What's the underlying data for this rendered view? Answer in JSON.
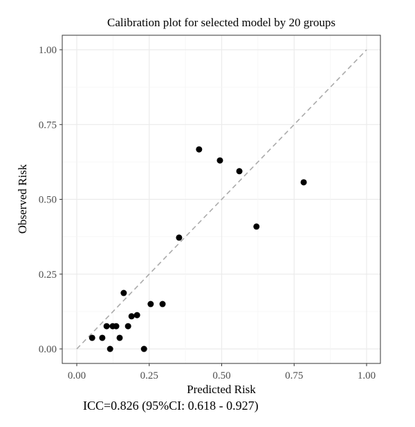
{
  "chart_data": {
    "type": "scatter",
    "title": "Calibration plot for selected model by 20 groups",
    "xlabel": "Predicted Risk",
    "ylabel": "Observed Risk",
    "xlim": [
      0,
      1
    ],
    "ylim": [
      0,
      1
    ],
    "xticks": [
      "0.00",
      "0.25",
      "0.50",
      "0.75",
      "1.00"
    ],
    "yticks": [
      "0.00",
      "0.25",
      "0.50",
      "0.75",
      "1.00"
    ],
    "grid": true,
    "reference_line": "y = x (dashed)",
    "point_color": "#000000",
    "line_color": "#aaaaaa",
    "points": [
      {
        "x": 0.053,
        "y": 0.037
      },
      {
        "x": 0.088,
        "y": 0.037
      },
      {
        "x": 0.103,
        "y": 0.076
      },
      {
        "x": 0.124,
        "y": 0.076
      },
      {
        "x": 0.136,
        "y": 0.076
      },
      {
        "x": 0.148,
        "y": 0.037
      },
      {
        "x": 0.162,
        "y": 0.187
      },
      {
        "x": 0.177,
        "y": 0.076
      },
      {
        "x": 0.115,
        "y": 0.0
      },
      {
        "x": 0.189,
        "y": 0.109
      },
      {
        "x": 0.208,
        "y": 0.113
      },
      {
        "x": 0.232,
        "y": 0.0
      },
      {
        "x": 0.255,
        "y": 0.15
      },
      {
        "x": 0.296,
        "y": 0.15
      },
      {
        "x": 0.353,
        "y": 0.372
      },
      {
        "x": 0.422,
        "y": 0.667
      },
      {
        "x": 0.494,
        "y": 0.63
      },
      {
        "x": 0.561,
        "y": 0.594
      },
      {
        "x": 0.62,
        "y": 0.409
      },
      {
        "x": 0.783,
        "y": 0.557
      }
    ],
    "annotation": "ICC=0.826 (95%CI: 0.618 - 0.927)"
  }
}
